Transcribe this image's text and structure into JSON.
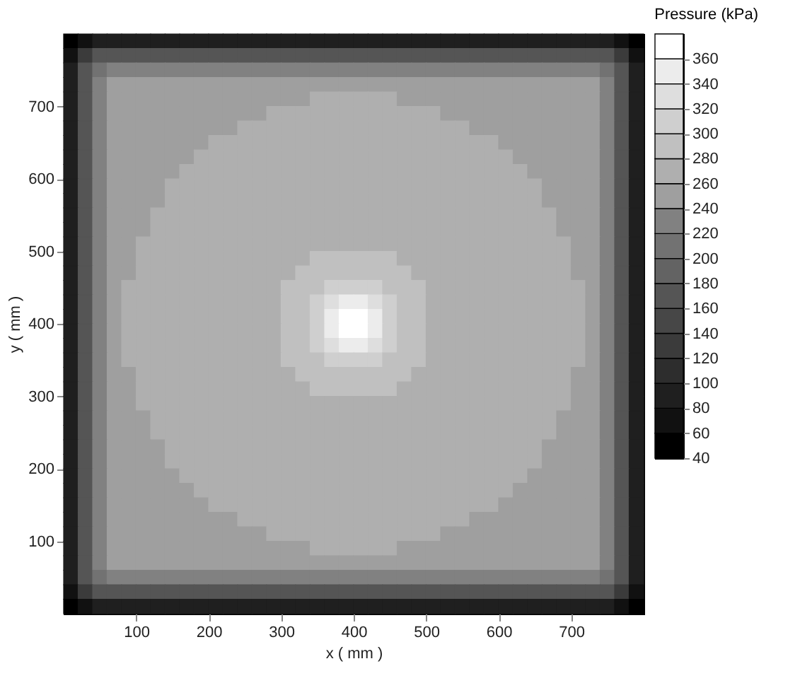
{
  "chart_data": {
    "type": "heatmap",
    "xlabel": "x ( mm )",
    "ylabel": "y ( mm )",
    "clabel": "Pressure (kPa)",
    "xlim": [
      0,
      800
    ],
    "ylim": [
      0,
      800
    ],
    "xticks": [
      100,
      200,
      300,
      400,
      500,
      600,
      700
    ],
    "yticks": [
      100,
      200,
      300,
      400,
      500,
      600,
      700
    ],
    "clim": [
      40,
      380
    ],
    "cticks": [
      40,
      60,
      80,
      100,
      120,
      140,
      160,
      180,
      200,
      220,
      240,
      260,
      280,
      300,
      320,
      340,
      360
    ],
    "colors": [
      "#000000",
      "#111111",
      "#1f1f1f",
      "#2d2d2d",
      "#3b3b3b",
      "#474747",
      "#555555",
      "#636363",
      "#727272",
      "#818181",
      "#9f9f9f",
      "#afafaf",
      "#c0c0c0",
      "#cfcfcf",
      "#dedede",
      "#ececec",
      "#ffffff"
    ],
    "cells": [
      [
        50,
        70,
        90,
        90,
        90,
        90,
        90,
        90,
        90,
        90,
        90,
        90,
        90,
        90,
        90,
        90,
        90,
        90,
        90,
        90,
        90,
        90,
        90,
        90,
        90,
        90,
        90,
        90,
        90,
        90,
        90,
        90,
        90,
        90,
        90,
        90,
        90,
        90,
        70,
        50
      ],
      [
        70,
        130,
        170,
        170,
        170,
        170,
        170,
        170,
        170,
        170,
        170,
        170,
        170,
        170,
        170,
        170,
        170,
        170,
        170,
        170,
        170,
        170,
        170,
        170,
        170,
        170,
        170,
        170,
        170,
        170,
        170,
        170,
        170,
        170,
        170,
        170,
        170,
        170,
        130,
        70
      ],
      [
        90,
        170,
        210,
        230,
        230,
        230,
        230,
        230,
        230,
        230,
        230,
        230,
        230,
        230,
        230,
        230,
        230,
        230,
        230,
        230,
        230,
        230,
        230,
        230,
        230,
        230,
        230,
        230,
        230,
        230,
        230,
        230,
        230,
        230,
        230,
        230,
        230,
        210,
        170,
        90
      ],
      [
        90,
        170,
        230,
        250,
        250,
        250,
        250,
        250,
        250,
        250,
        250,
        250,
        250,
        250,
        250,
        250,
        250,
        250,
        250,
        250,
        250,
        250,
        250,
        250,
        250,
        250,
        250,
        250,
        250,
        250,
        250,
        250,
        250,
        250,
        250,
        250,
        250,
        230,
        170,
        90
      ],
      [
        90,
        170,
        230,
        250,
        250,
        250,
        250,
        250,
        250,
        250,
        250,
        250,
        250,
        250,
        250,
        250,
        250,
        270,
        270,
        270,
        270,
        270,
        270,
        250,
        250,
        250,
        250,
        250,
        250,
        250,
        250,
        250,
        250,
        250,
        250,
        250,
        250,
        230,
        170,
        90
      ],
      [
        90,
        170,
        230,
        250,
        250,
        250,
        250,
        250,
        250,
        250,
        250,
        250,
        250,
        250,
        270,
        270,
        270,
        270,
        270,
        270,
        270,
        270,
        270,
        270,
        270,
        270,
        250,
        250,
        250,
        250,
        250,
        250,
        250,
        250,
        250,
        250,
        250,
        230,
        170,
        90
      ],
      [
        90,
        170,
        230,
        250,
        250,
        250,
        250,
        250,
        250,
        250,
        250,
        250,
        270,
        270,
        270,
        270,
        270,
        270,
        270,
        270,
        270,
        270,
        270,
        270,
        270,
        270,
        270,
        270,
        250,
        250,
        250,
        250,
        250,
        250,
        250,
        250,
        250,
        230,
        170,
        90
      ],
      [
        90,
        170,
        230,
        250,
        250,
        250,
        250,
        250,
        250,
        250,
        270,
        270,
        270,
        270,
        270,
        270,
        270,
        270,
        270,
        270,
        270,
        270,
        270,
        270,
        270,
        270,
        270,
        270,
        270,
        270,
        250,
        250,
        250,
        250,
        250,
        250,
        250,
        230,
        170,
        90
      ],
      [
        90,
        170,
        230,
        250,
        250,
        250,
        250,
        250,
        250,
        270,
        270,
        270,
        270,
        270,
        270,
        270,
        270,
        270,
        270,
        270,
        270,
        270,
        270,
        270,
        270,
        270,
        270,
        270,
        270,
        270,
        270,
        250,
        250,
        250,
        250,
        250,
        250,
        230,
        170,
        90
      ],
      [
        90,
        170,
        230,
        250,
        250,
        250,
        250,
        250,
        270,
        270,
        270,
        270,
        270,
        270,
        270,
        270,
        270,
        270,
        270,
        270,
        270,
        270,
        270,
        270,
        270,
        270,
        270,
        270,
        270,
        270,
        270,
        270,
        250,
        250,
        250,
        250,
        250,
        230,
        170,
        90
      ],
      [
        90,
        170,
        230,
        250,
        250,
        250,
        250,
        270,
        270,
        270,
        270,
        270,
        270,
        270,
        270,
        270,
        270,
        270,
        270,
        270,
        270,
        270,
        270,
        270,
        270,
        270,
        270,
        270,
        270,
        270,
        270,
        270,
        270,
        250,
        250,
        250,
        250,
        230,
        170,
        90
      ],
      [
        90,
        170,
        230,
        250,
        250,
        250,
        250,
        270,
        270,
        270,
        270,
        270,
        270,
        270,
        270,
        270,
        270,
        270,
        270,
        270,
        270,
        270,
        270,
        270,
        270,
        270,
        270,
        270,
        270,
        270,
        270,
        270,
        270,
        250,
        250,
        250,
        250,
        230,
        170,
        90
      ],
      [
        90,
        170,
        230,
        250,
        250,
        250,
        270,
        270,
        270,
        270,
        270,
        270,
        270,
        270,
        270,
        270,
        270,
        270,
        270,
        270,
        270,
        270,
        270,
        270,
        270,
        270,
        270,
        270,
        270,
        270,
        270,
        270,
        270,
        270,
        250,
        250,
        250,
        230,
        170,
        90
      ],
      [
        90,
        170,
        230,
        250,
        250,
        250,
        270,
        270,
        270,
        270,
        270,
        270,
        270,
        270,
        270,
        270,
        270,
        270,
        270,
        270,
        270,
        270,
        270,
        270,
        270,
        270,
        270,
        270,
        270,
        270,
        270,
        270,
        270,
        270,
        250,
        250,
        250,
        230,
        170,
        90
      ],
      [
        90,
        170,
        230,
        250,
        250,
        270,
        270,
        270,
        270,
        270,
        270,
        270,
        270,
        270,
        270,
        270,
        270,
        270,
        270,
        270,
        270,
        270,
        270,
        270,
        270,
        270,
        270,
        270,
        270,
        270,
        270,
        270,
        270,
        270,
        270,
        250,
        250,
        230,
        170,
        90
      ],
      [
        90,
        170,
        230,
        250,
        250,
        270,
        270,
        270,
        270,
        270,
        270,
        270,
        270,
        270,
        270,
        270,
        270,
        290,
        290,
        290,
        290,
        290,
        290,
        270,
        270,
        270,
        270,
        270,
        270,
        270,
        270,
        270,
        270,
        270,
        270,
        250,
        250,
        230,
        170,
        90
      ],
      [
        90,
        170,
        230,
        250,
        250,
        270,
        270,
        270,
        270,
        270,
        270,
        270,
        270,
        270,
        270,
        270,
        290,
        290,
        290,
        290,
        290,
        290,
        290,
        290,
        270,
        270,
        270,
        270,
        270,
        270,
        270,
        270,
        270,
        270,
        270,
        250,
        250,
        230,
        170,
        90
      ],
      [
        90,
        170,
        230,
        250,
        270,
        270,
        270,
        270,
        270,
        270,
        270,
        270,
        270,
        270,
        270,
        290,
        290,
        290,
        310,
        310,
        310,
        310,
        290,
        290,
        290,
        270,
        270,
        270,
        270,
        270,
        270,
        270,
        270,
        270,
        270,
        270,
        250,
        230,
        170,
        90
      ],
      [
        90,
        170,
        230,
        250,
        270,
        270,
        270,
        270,
        270,
        270,
        270,
        270,
        270,
        270,
        270,
        290,
        290,
        310,
        330,
        350,
        350,
        330,
        310,
        290,
        290,
        270,
        270,
        270,
        270,
        270,
        270,
        270,
        270,
        270,
        270,
        270,
        250,
        230,
        170,
        90
      ],
      [
        90,
        170,
        230,
        250,
        270,
        270,
        270,
        270,
        270,
        270,
        270,
        270,
        270,
        270,
        270,
        290,
        290,
        310,
        350,
        370,
        370,
        350,
        310,
        290,
        290,
        270,
        270,
        270,
        270,
        270,
        270,
        270,
        270,
        270,
        270,
        270,
        250,
        230,
        170,
        90
      ],
      [
        90,
        170,
        230,
        250,
        270,
        270,
        270,
        270,
        270,
        270,
        270,
        270,
        270,
        270,
        270,
        290,
        290,
        310,
        350,
        370,
        370,
        350,
        310,
        290,
        290,
        270,
        270,
        270,
        270,
        270,
        270,
        270,
        270,
        270,
        270,
        270,
        250,
        230,
        170,
        90
      ],
      [
        90,
        170,
        230,
        250,
        270,
        270,
        270,
        270,
        270,
        270,
        270,
        270,
        270,
        270,
        270,
        290,
        290,
        310,
        330,
        350,
        350,
        330,
        310,
        290,
        290,
        270,
        270,
        270,
        270,
        270,
        270,
        270,
        270,
        270,
        270,
        270,
        250,
        230,
        170,
        90
      ],
      [
        90,
        170,
        230,
        250,
        270,
        270,
        270,
        270,
        270,
        270,
        270,
        270,
        270,
        270,
        270,
        290,
        290,
        290,
        310,
        310,
        310,
        310,
        290,
        290,
        290,
        270,
        270,
        270,
        270,
        270,
        270,
        270,
        270,
        270,
        270,
        270,
        250,
        230,
        170,
        90
      ],
      [
        90,
        170,
        230,
        250,
        250,
        270,
        270,
        270,
        270,
        270,
        270,
        270,
        270,
        270,
        270,
        270,
        290,
        290,
        290,
        290,
        290,
        290,
        290,
        290,
        270,
        270,
        270,
        270,
        270,
        270,
        270,
        270,
        270,
        270,
        270,
        250,
        250,
        230,
        170,
        90
      ],
      [
        90,
        170,
        230,
        250,
        250,
        270,
        270,
        270,
        270,
        270,
        270,
        270,
        270,
        270,
        270,
        270,
        270,
        290,
        290,
        290,
        290,
        290,
        290,
        270,
        270,
        270,
        270,
        270,
        270,
        270,
        270,
        270,
        270,
        270,
        270,
        250,
        250,
        230,
        170,
        90
      ],
      [
        90,
        170,
        230,
        250,
        250,
        270,
        270,
        270,
        270,
        270,
        270,
        270,
        270,
        270,
        270,
        270,
        270,
        270,
        270,
        270,
        270,
        270,
        270,
        270,
        270,
        270,
        270,
        270,
        270,
        270,
        270,
        270,
        270,
        270,
        270,
        250,
        250,
        230,
        170,
        90
      ],
      [
        90,
        170,
        230,
        250,
        250,
        250,
        270,
        270,
        270,
        270,
        270,
        270,
        270,
        270,
        270,
        270,
        270,
        270,
        270,
        270,
        270,
        270,
        270,
        270,
        270,
        270,
        270,
        270,
        270,
        270,
        270,
        270,
        270,
        270,
        250,
        250,
        250,
        230,
        170,
        90
      ],
      [
        90,
        170,
        230,
        250,
        250,
        250,
        270,
        270,
        270,
        270,
        270,
        270,
        270,
        270,
        270,
        270,
        270,
        270,
        270,
        270,
        270,
        270,
        270,
        270,
        270,
        270,
        270,
        270,
        270,
        270,
        270,
        270,
        270,
        270,
        250,
        250,
        250,
        230,
        170,
        90
      ],
      [
        90,
        170,
        230,
        250,
        250,
        250,
        250,
        270,
        270,
        270,
        270,
        270,
        270,
        270,
        270,
        270,
        270,
        270,
        270,
        270,
        270,
        270,
        270,
        270,
        270,
        270,
        270,
        270,
        270,
        270,
        270,
        270,
        270,
        250,
        250,
        250,
        250,
        230,
        170,
        90
      ],
      [
        90,
        170,
        230,
        250,
        250,
        250,
        250,
        270,
        270,
        270,
        270,
        270,
        270,
        270,
        270,
        270,
        270,
        270,
        270,
        270,
        270,
        270,
        270,
        270,
        270,
        270,
        270,
        270,
        270,
        270,
        270,
        270,
        270,
        250,
        250,
        250,
        250,
        230,
        170,
        90
      ],
      [
        90,
        170,
        230,
        250,
        250,
        250,
        250,
        250,
        270,
        270,
        270,
        270,
        270,
        270,
        270,
        270,
        270,
        270,
        270,
        270,
        270,
        270,
        270,
        270,
        270,
        270,
        270,
        270,
        270,
        270,
        270,
        270,
        250,
        250,
        250,
        250,
        250,
        230,
        170,
        90
      ],
      [
        90,
        170,
        230,
        250,
        250,
        250,
        250,
        250,
        250,
        270,
        270,
        270,
        270,
        270,
        270,
        270,
        270,
        270,
        270,
        270,
        270,
        270,
        270,
        270,
        270,
        270,
        270,
        270,
        270,
        270,
        270,
        250,
        250,
        250,
        250,
        250,
        250,
        230,
        170,
        90
      ],
      [
        90,
        170,
        230,
        250,
        250,
        250,
        250,
        250,
        250,
        250,
        270,
        270,
        270,
        270,
        270,
        270,
        270,
        270,
        270,
        270,
        270,
        270,
        270,
        270,
        270,
        270,
        270,
        270,
        270,
        270,
        250,
        250,
        250,
        250,
        250,
        250,
        250,
        230,
        170,
        90
      ],
      [
        90,
        170,
        230,
        250,
        250,
        250,
        250,
        250,
        250,
        250,
        250,
        250,
        270,
        270,
        270,
        270,
        270,
        270,
        270,
        270,
        270,
        270,
        270,
        270,
        270,
        270,
        270,
        270,
        250,
        250,
        250,
        250,
        250,
        250,
        250,
        250,
        250,
        230,
        170,
        90
      ],
      [
        90,
        170,
        230,
        250,
        250,
        250,
        250,
        250,
        250,
        250,
        250,
        250,
        250,
        250,
        270,
        270,
        270,
        270,
        270,
        270,
        270,
        270,
        270,
        270,
        270,
        270,
        250,
        250,
        250,
        250,
        250,
        250,
        250,
        250,
        250,
        250,
        250,
        230,
        170,
        90
      ],
      [
        90,
        170,
        230,
        250,
        250,
        250,
        250,
        250,
        250,
        250,
        250,
        250,
        250,
        250,
        250,
        250,
        250,
        270,
        270,
        270,
        270,
        270,
        270,
        250,
        250,
        250,
        250,
        250,
        250,
        250,
        250,
        250,
        250,
        250,
        250,
        250,
        250,
        230,
        170,
        90
      ],
      [
        90,
        170,
        230,
        250,
        250,
        250,
        250,
        250,
        250,
        250,
        250,
        250,
        250,
        250,
        250,
        250,
        250,
        250,
        250,
        250,
        250,
        250,
        250,
        250,
        250,
        250,
        250,
        250,
        250,
        250,
        250,
        250,
        250,
        250,
        250,
        250,
        250,
        230,
        170,
        90
      ],
      [
        90,
        170,
        210,
        230,
        230,
        230,
        230,
        230,
        230,
        230,
        230,
        230,
        230,
        230,
        230,
        230,
        230,
        230,
        230,
        230,
        230,
        230,
        230,
        230,
        230,
        230,
        230,
        230,
        230,
        230,
        230,
        230,
        230,
        230,
        230,
        230,
        230,
        210,
        170,
        90
      ],
      [
        70,
        130,
        170,
        170,
        170,
        170,
        170,
        170,
        170,
        170,
        170,
        170,
        170,
        170,
        170,
        170,
        170,
        170,
        170,
        170,
        170,
        170,
        170,
        170,
        170,
        170,
        170,
        170,
        170,
        170,
        170,
        170,
        170,
        170,
        170,
        170,
        170,
        170,
        130,
        70
      ],
      [
        50,
        70,
        90,
        90,
        90,
        90,
        90,
        90,
        90,
        90,
        90,
        90,
        90,
        90,
        90,
        90,
        90,
        90,
        90,
        90,
        90,
        90,
        90,
        90,
        90,
        90,
        90,
        90,
        90,
        90,
        90,
        90,
        90,
        90,
        90,
        90,
        90,
        90,
        70,
        50
      ]
    ]
  }
}
